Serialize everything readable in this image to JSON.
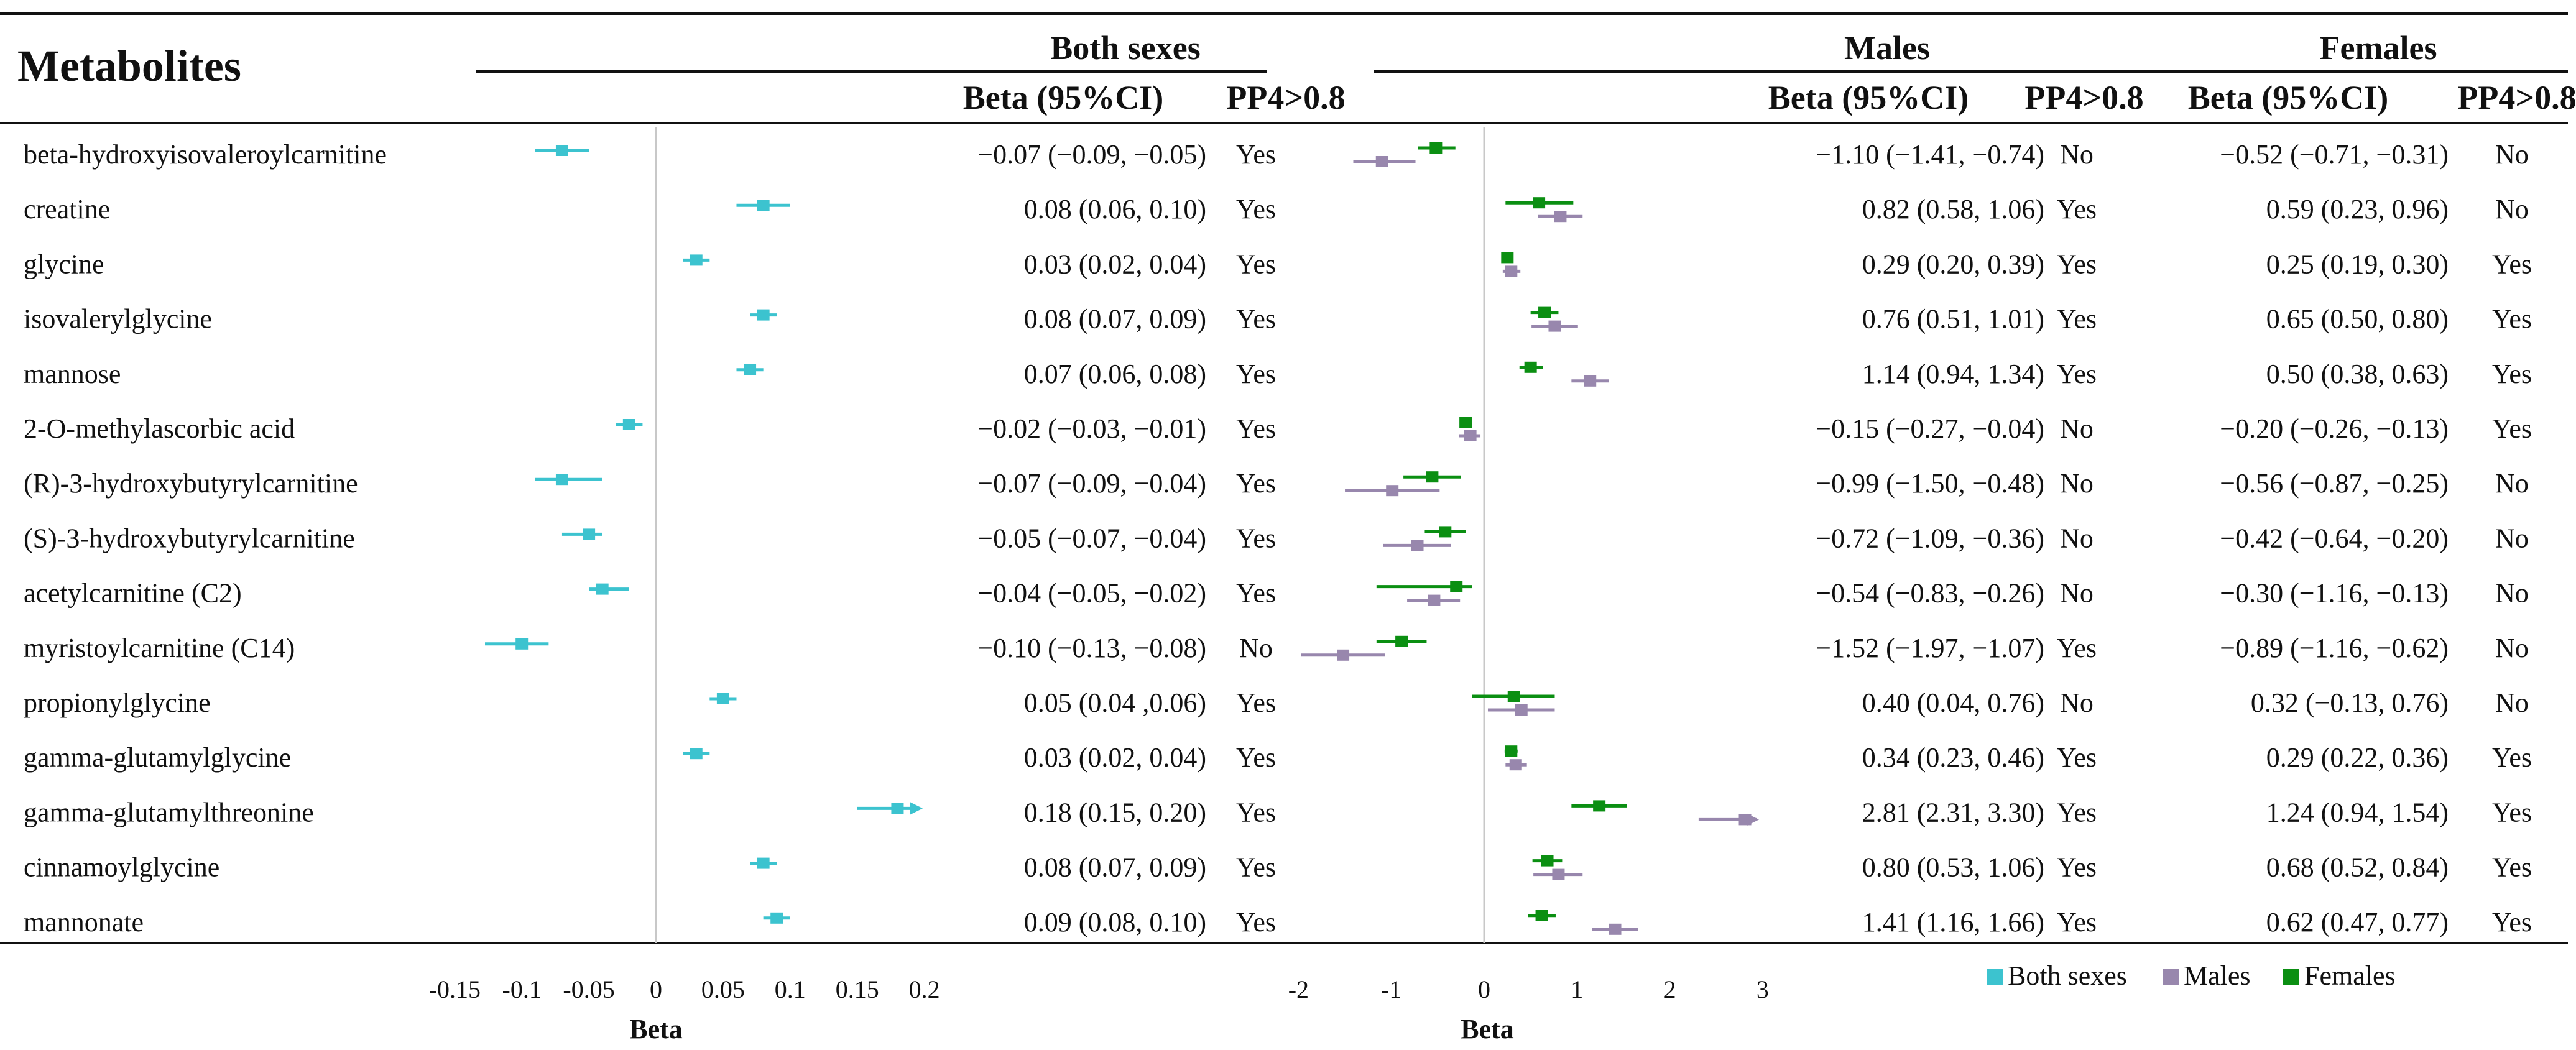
{
  "chart_data": {
    "type": "forest",
    "title": "",
    "headers": {
      "metabolites": "Metabolites",
      "both_sexes": "Both sexes",
      "males": "Males",
      "females": "Females",
      "beta_ci": "Beta (95%CI)",
      "pp4": "PP4>0.8"
    },
    "legend": {
      "position": "bottom-right",
      "items": [
        {
          "name": "Both sexes",
          "color": "#3cc3cf"
        },
        {
          "name": "Males",
          "color": "#9887ad"
        },
        {
          "name": "Females",
          "color": "#0b8f12"
        }
      ]
    },
    "colors": {
      "both": "#3cc3cf",
      "males": "#9887ad",
      "females": "#0b8f12",
      "zero_line": "#c8c8c8"
    },
    "axes": {
      "both": {
        "xlabel": "Beta",
        "xlim": [
          -0.15,
          0.2
        ],
        "ticks": [
          "-0.15",
          "-0.1",
          "-0.05",
          "0",
          "0.05",
          "0.1",
          "0.15",
          "0.2"
        ]
      },
      "sex": {
        "xlabel": "Beta",
        "xlim": [
          -2,
          3
        ],
        "ticks": [
          "-2",
          "-1",
          "0",
          "1",
          "2",
          "3"
        ]
      }
    },
    "rows": [
      {
        "metabolite": "beta-hydroxyisovaleroylcarnitine",
        "both": {
          "beta": -0.07,
          "lo": -0.09,
          "hi": -0.05,
          "text": "−0.07 (−0.09, −0.05)",
          "pp4": "Yes"
        },
        "males": {
          "beta": -1.1,
          "lo": -1.41,
          "hi": -0.74,
          "text": "−1.10 (−1.41, −0.74)",
          "pp4": "No"
        },
        "females": {
          "beta": -0.52,
          "lo": -0.71,
          "hi": -0.31,
          "text": "−0.52 (−0.71, −0.31)",
          "pp4": "No"
        }
      },
      {
        "metabolite": "creatine",
        "both": {
          "beta": 0.08,
          "lo": 0.06,
          "hi": 0.1,
          "text": "0.08 (0.06, 0.10)",
          "pp4": "Yes"
        },
        "males": {
          "beta": 0.82,
          "lo": 0.58,
          "hi": 1.06,
          "text": "0.82 (0.58, 1.06)",
          "pp4": "Yes"
        },
        "females": {
          "beta": 0.59,
          "lo": 0.23,
          "hi": 0.96,
          "text": "0.59 (0.23, 0.96)",
          "pp4": "No"
        }
      },
      {
        "metabolite": "glycine",
        "both": {
          "beta": 0.03,
          "lo": 0.02,
          "hi": 0.04,
          "text": "0.03 (0.02, 0.04)",
          "pp4": "Yes"
        },
        "males": {
          "beta": 0.29,
          "lo": 0.2,
          "hi": 0.39,
          "text": "0.29 (0.20, 0.39)",
          "pp4": "Yes"
        },
        "females": {
          "beta": 0.25,
          "lo": 0.19,
          "hi": 0.3,
          "text": "0.25 (0.19, 0.30)",
          "pp4": "Yes"
        }
      },
      {
        "metabolite": "isovalerylglycine",
        "both": {
          "beta": 0.08,
          "lo": 0.07,
          "hi": 0.09,
          "text": "0.08 (0.07, 0.09)",
          "pp4": "Yes"
        },
        "males": {
          "beta": 0.76,
          "lo": 0.51,
          "hi": 1.01,
          "text": "0.76 (0.51, 1.01)",
          "pp4": "Yes"
        },
        "females": {
          "beta": 0.65,
          "lo": 0.5,
          "hi": 0.8,
          "text": "0.65 (0.50, 0.80)",
          "pp4": "Yes"
        }
      },
      {
        "metabolite": "mannose",
        "both": {
          "beta": 0.07,
          "lo": 0.06,
          "hi": 0.08,
          "text": "0.07 (0.06, 0.08)",
          "pp4": "Yes"
        },
        "males": {
          "beta": 1.14,
          "lo": 0.94,
          "hi": 1.34,
          "text": "1.14 (0.94, 1.34)",
          "pp4": "Yes"
        },
        "females": {
          "beta": 0.5,
          "lo": 0.38,
          "hi": 0.63,
          "text": "0.50 (0.38, 0.63)",
          "pp4": "Yes"
        }
      },
      {
        "metabolite": "2-O-methylascorbic acid",
        "both": {
          "beta": -0.02,
          "lo": -0.03,
          "hi": -0.01,
          "text": "−0.02 (−0.03, −0.01)",
          "pp4": "Yes"
        },
        "males": {
          "beta": -0.15,
          "lo": -0.27,
          "hi": -0.04,
          "text": "−0.15 (−0.27, −0.04)",
          "pp4": "No"
        },
        "females": {
          "beta": -0.2,
          "lo": -0.26,
          "hi": -0.13,
          "text": "−0.20 (−0.26, −0.13)",
          "pp4": "Yes"
        }
      },
      {
        "metabolite": "(R)-3-hydroxybutyrylcarnitine",
        "both": {
          "beta": -0.07,
          "lo": -0.09,
          "hi": -0.04,
          "text": "−0.07 (−0.09, −0.04)",
          "pp4": "Yes"
        },
        "males": {
          "beta": -0.99,
          "lo": -1.5,
          "hi": -0.48,
          "text": "−0.99 (−1.50, −0.48)",
          "pp4": "No"
        },
        "females": {
          "beta": -0.56,
          "lo": -0.87,
          "hi": -0.25,
          "text": "−0.56 (−0.87, −0.25)",
          "pp4": "No"
        }
      },
      {
        "metabolite": "(S)-3-hydroxybutyrylcarnitine",
        "both": {
          "beta": -0.05,
          "lo": -0.07,
          "hi": -0.04,
          "text": "−0.05 (−0.07, −0.04)",
          "pp4": "Yes"
        },
        "males": {
          "beta": -0.72,
          "lo": -1.09,
          "hi": -0.36,
          "text": "−0.72 (−1.09, −0.36)",
          "pp4": "No"
        },
        "females": {
          "beta": -0.42,
          "lo": -0.64,
          "hi": -0.2,
          "text": "−0.42 (−0.64, −0.20)",
          "pp4": "No"
        }
      },
      {
        "metabolite": "acetylcarnitine (C2)",
        "both": {
          "beta": -0.04,
          "lo": -0.05,
          "hi": -0.02,
          "text": "−0.04 (−0.05, −0.02)",
          "pp4": "Yes"
        },
        "males": {
          "beta": -0.54,
          "lo": -0.83,
          "hi": -0.26,
          "text": "−0.54 (−0.83, −0.26)",
          "pp4": "No"
        },
        "females": {
          "beta": -0.3,
          "lo": -1.16,
          "hi": -0.13,
          "text": "−0.30 (−1.16, −0.13)",
          "pp4": "No"
        }
      },
      {
        "metabolite": "myristoylcarnitine (C14)",
        "both": {
          "beta": -0.1,
          "lo": -0.13,
          "hi": -0.08,
          "text": "−0.10 (−0.13, −0.08)",
          "pp4": "No"
        },
        "males": {
          "beta": -1.52,
          "lo": -1.97,
          "hi": -1.07,
          "text": "−1.52 (−1.97, −1.07)",
          "pp4": "Yes"
        },
        "females": {
          "beta": -0.89,
          "lo": -1.16,
          "hi": -0.62,
          "text": "−0.89 (−1.16, −0.62)",
          "pp4": "No"
        }
      },
      {
        "metabolite": "propionylglycine",
        "both": {
          "beta": 0.05,
          "lo": 0.04,
          "hi": 0.06,
          "text": "0.05 (0.04 ,0.06)",
          "pp4": "Yes"
        },
        "males": {
          "beta": 0.4,
          "lo": 0.04,
          "hi": 0.76,
          "text": "0.40 (0.04, 0.76)",
          "pp4": "No"
        },
        "females": {
          "beta": 0.32,
          "lo": -0.13,
          "hi": 0.76,
          "text": "0.32 (−0.13, 0.76)",
          "pp4": "No"
        }
      },
      {
        "metabolite": "gamma-glutamylglycine",
        "both": {
          "beta": 0.03,
          "lo": 0.02,
          "hi": 0.04,
          "text": "0.03 (0.02, 0.04)",
          "pp4": "Yes"
        },
        "males": {
          "beta": 0.34,
          "lo": 0.23,
          "hi": 0.46,
          "text": "0.34 (0.23, 0.46)",
          "pp4": "Yes"
        },
        "females": {
          "beta": 0.29,
          "lo": 0.22,
          "hi": 0.36,
          "text": "0.29 (0.22, 0.36)",
          "pp4": "Yes"
        }
      },
      {
        "metabolite": "gamma-glutamylthreonine",
        "both": {
          "beta": 0.18,
          "lo": 0.15,
          "hi": 0.2,
          "text": "0.18 (0.15, 0.20)",
          "pp4": "Yes"
        },
        "males": {
          "beta": 2.81,
          "lo": 2.31,
          "hi": 3.3,
          "text": "2.81 (2.31, 3.30)",
          "pp4": "Yes"
        },
        "females": {
          "beta": 1.24,
          "lo": 0.94,
          "hi": 1.54,
          "text": "1.24 (0.94, 1.54)",
          "pp4": "Yes"
        }
      },
      {
        "metabolite": "cinnamoylglycine",
        "both": {
          "beta": 0.08,
          "lo": 0.07,
          "hi": 0.09,
          "text": "0.08 (0.07, 0.09)",
          "pp4": "Yes"
        },
        "males": {
          "beta": 0.8,
          "lo": 0.53,
          "hi": 1.06,
          "text": "0.80 (0.53, 1.06)",
          "pp4": "Yes"
        },
        "females": {
          "beta": 0.68,
          "lo": 0.52,
          "hi": 0.84,
          "text": "0.68 (0.52, 0.84)",
          "pp4": "Yes"
        }
      },
      {
        "metabolite": "mannonate",
        "both": {
          "beta": 0.09,
          "lo": 0.08,
          "hi": 0.1,
          "text": "0.09 (0.08, 0.10)",
          "pp4": "Yes"
        },
        "males": {
          "beta": 1.41,
          "lo": 1.16,
          "hi": 1.66,
          "text": "1.41 (1.16, 1.66)",
          "pp4": "Yes"
        },
        "females": {
          "beta": 0.62,
          "lo": 0.47,
          "hi": 0.77,
          "text": "0.62 (0.47, 0.77)",
          "pp4": "Yes"
        }
      }
    ]
  }
}
